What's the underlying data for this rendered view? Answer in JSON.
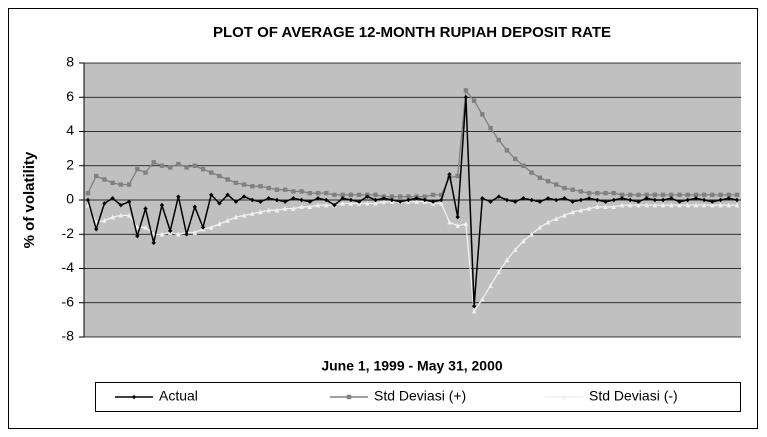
{
  "chart_data": {
    "type": "line",
    "title": "PLOT OF AVERAGE 12-MONTH RUPIAH DEPOSIT RATE",
    "y_label": "% of volatility",
    "x_label": "June 1, 1999 - May 31, 2000",
    "ylim": [
      -8,
      8
    ],
    "yticks": [
      -8,
      -6,
      -4,
      -2,
      0,
      2,
      4,
      6,
      8
    ],
    "grid": true,
    "plot_background": "#c0c0c0",
    "legend": "bottom",
    "series": [
      {
        "name": "Actual",
        "color": "#000000",
        "marker": "diamond",
        "values": [
          0,
          -1.7,
          -0.2,
          0.1,
          -0.3,
          -0.1,
          -2.1,
          -0.5,
          -2.5,
          -0.3,
          -1.8,
          0.2,
          -2.0,
          -0.4,
          -1.6,
          0.3,
          -0.2,
          0.3,
          -0.1,
          0.2,
          0,
          -0.1,
          0.1,
          0,
          -0.1,
          0.1,
          0,
          -0.1,
          0.1,
          0,
          -0.3,
          0.1,
          0,
          -0.1,
          0.2,
          0,
          0.1,
          0,
          -0.1,
          0,
          0.1,
          0,
          -0.1,
          0,
          1.5,
          -1.0,
          6.0,
          -6.2,
          0.1,
          -0.1,
          0.2,
          0,
          -0.1,
          0.1,
          0,
          -0.1,
          0.1,
          0,
          0.1,
          -0.1,
          0,
          0.1,
          0,
          -0.1,
          0,
          0.1,
          0,
          -0.1,
          0.1,
          0,
          0,
          0.1,
          -0.1,
          0,
          0.1,
          0,
          -0.1,
          0,
          0.1,
          0
        ]
      },
      {
        "name": "Std Deviasi (+)",
        "color": "#808080",
        "marker": "square",
        "values": [
          0.4,
          1.4,
          1.2,
          1.0,
          0.9,
          0.9,
          1.8,
          1.6,
          2.2,
          2.0,
          1.9,
          2.1,
          1.9,
          2.0,
          1.8,
          1.6,
          1.4,
          1.2,
          1.0,
          0.9,
          0.8,
          0.8,
          0.7,
          0.6,
          0.6,
          0.5,
          0.5,
          0.4,
          0.4,
          0.4,
          0.3,
          0.3,
          0.3,
          0.3,
          0.3,
          0.3,
          0.2,
          0.2,
          0.2,
          0.2,
          0.2,
          0.2,
          0.3,
          0.3,
          1.3,
          1.4,
          6.4,
          5.8,
          5.0,
          4.2,
          3.5,
          2.9,
          2.4,
          2.0,
          1.6,
          1.3,
          1.1,
          0.9,
          0.7,
          0.6,
          0.5,
          0.4,
          0.4,
          0.4,
          0.4,
          0.3,
          0.3,
          0.3,
          0.3,
          0.3,
          0.3,
          0.3,
          0.3,
          0.3,
          0.3,
          0.3,
          0.3,
          0.3,
          0.3,
          0.3
        ]
      },
      {
        "name": "Std Deviasi (-)",
        "color": "#f0f0f0",
        "marker": "triangle",
        "values": [
          -0.3,
          -1.3,
          -1.2,
          -1.0,
          -0.9,
          -0.9,
          -1.6,
          -1.6,
          -2.0,
          -2.0,
          -1.9,
          -2.0,
          -1.9,
          -1.9,
          -1.7,
          -1.6,
          -1.4,
          -1.2,
          -1.0,
          -0.9,
          -0.8,
          -0.7,
          -0.6,
          -0.6,
          -0.5,
          -0.5,
          -0.4,
          -0.4,
          -0.3,
          -0.3,
          -0.3,
          -0.2,
          -0.2,
          -0.2,
          -0.2,
          -0.2,
          -0.1,
          -0.1,
          -0.1,
          -0.1,
          -0.1,
          -0.1,
          -0.2,
          -0.2,
          -1.3,
          -1.5,
          -1.4,
          -6.5,
          -5.8,
          -5.0,
          -4.2,
          -3.5,
          -2.9,
          -2.4,
          -2.0,
          -1.6,
          -1.3,
          -1.1,
          -0.9,
          -0.7,
          -0.6,
          -0.5,
          -0.4,
          -0.4,
          -0.4,
          -0.3,
          -0.3,
          -0.3,
          -0.3,
          -0.3,
          -0.3,
          -0.3,
          -0.3,
          -0.3,
          -0.3,
          -0.3,
          -0.3,
          -0.3,
          -0.3,
          -0.3
        ]
      }
    ]
  }
}
